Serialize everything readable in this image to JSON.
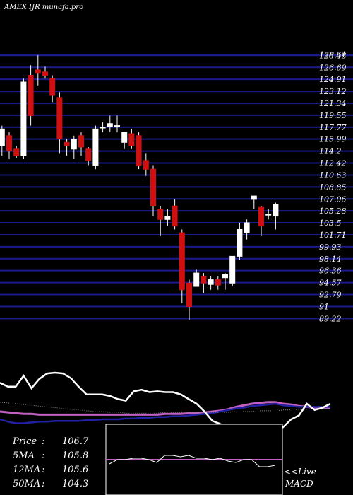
{
  "chart_data": {
    "type": "candlestick",
    "title": "AMEX  IJR munafa.pro",
    "y_ticks": [
      128.61,
      128.48,
      126.69,
      124.91,
      123.12,
      121.34,
      119.55,
      117.77,
      115.99,
      114.2,
      112.42,
      110.63,
      108.85,
      107.06,
      105.28,
      103.5,
      101.71,
      99.93,
      98.14,
      96.36,
      94.57,
      92.79,
      91,
      89.22
    ],
    "y_tick_labels": [
      "128.61",
      "128.48",
      "126.69",
      "124.91",
      "123.12",
      "121.34",
      "119.55",
      "117.77",
      "115.99",
      "114.2",
      "112.42",
      "110.63",
      "108.85",
      "107.06",
      "105.28",
      "103.5",
      "101.71",
      "99.93",
      "98.14",
      "96.36",
      "94.57",
      "92.79",
      "91",
      "89.22"
    ],
    "ylim": [
      88.2,
      130.2
    ],
    "grid": true,
    "candles": [
      {
        "o": 115.0,
        "h": 118.0,
        "l": 113.5,
        "c": 117.5
      },
      {
        "o": 116.5,
        "h": 117.0,
        "l": 113.0,
        "c": 114.2
      },
      {
        "o": 114.5,
        "h": 115.0,
        "l": 113.2,
        "c": 113.5
      },
      {
        "o": 113.5,
        "h": 125.0,
        "l": 113.0,
        "c": 124.5
      },
      {
        "o": 125.5,
        "h": 127.0,
        "l": 118.0,
        "c": 119.5
      },
      {
        "o": 126.3,
        "h": 128.5,
        "l": 124.0,
        "c": 125.9
      },
      {
        "o": 126.0,
        "h": 126.8,
        "l": 125.0,
        "c": 125.5
      },
      {
        "o": 125.0,
        "h": 125.5,
        "l": 121.5,
        "c": 122.5
      },
      {
        "o": 122.2,
        "h": 123.0,
        "l": 113.8,
        "c": 116.0
      },
      {
        "o": 115.5,
        "h": 116.0,
        "l": 113.5,
        "c": 115.0
      },
      {
        "o": 114.5,
        "h": 116.5,
        "l": 113.0,
        "c": 116.0
      },
      {
        "o": 116.5,
        "h": 117.0,
        "l": 113.5,
        "c": 114.8
      },
      {
        "o": 114.5,
        "h": 114.8,
        "l": 112.0,
        "c": 112.8
      },
      {
        "o": 112.0,
        "h": 118.0,
        "l": 111.5,
        "c": 117.5
      },
      {
        "o": 117.8,
        "h": 118.5,
        "l": 117.0,
        "c": 117.8
      },
      {
        "o": 117.8,
        "h": 119.5,
        "l": 117.0,
        "c": 118.3
      },
      {
        "o": 118.0,
        "h": 119.5,
        "l": 117.0,
        "c": 118.0
      },
      {
        "o": 115.5,
        "h": 117.0,
        "l": 114.5,
        "c": 117.0
      },
      {
        "o": 116.8,
        "h": 117.5,
        "l": 114.5,
        "c": 115.0
      },
      {
        "o": 116.5,
        "h": 117.0,
        "l": 111.5,
        "c": 112.0
      },
      {
        "o": 112.8,
        "h": 113.8,
        "l": 110.5,
        "c": 111.5
      },
      {
        "o": 111.5,
        "h": 112.0,
        "l": 104.5,
        "c": 106.0
      },
      {
        "o": 105.5,
        "h": 106.0,
        "l": 101.5,
        "c": 104.0
      },
      {
        "o": 104.0,
        "h": 105.5,
        "l": 103.0,
        "c": 104.5
      },
      {
        "o": 106.0,
        "h": 107.0,
        "l": 102.5,
        "c": 103.0
      },
      {
        "o": 102.0,
        "h": 102.5,
        "l": 91.5,
        "c": 93.5
      },
      {
        "o": 94.5,
        "h": 95.0,
        "l": 89.0,
        "c": 91.0
      },
      {
        "o": 94.0,
        "h": 96.5,
        "l": 94.0,
        "c": 96.0
      },
      {
        "o": 95.5,
        "h": 96.0,
        "l": 93.0,
        "c": 94.5
      },
      {
        "o": 94.3,
        "h": 95.5,
        "l": 93.5,
        "c": 95.0
      },
      {
        "o": 95.0,
        "h": 95.5,
        "l": 93.5,
        "c": 94.2
      },
      {
        "o": 95.3,
        "h": 96.0,
        "l": 93.5,
        "c": 95.8
      },
      {
        "o": 94.5,
        "h": 98.5,
        "l": 94.0,
        "c": 98.5
      },
      {
        "o": 98.5,
        "h": 103.5,
        "l": 98.0,
        "c": 102.5
      },
      {
        "o": 102.0,
        "h": 104.0,
        "l": 101.0,
        "c": 103.5
      },
      {
        "o": 107.0,
        "h": 107.5,
        "l": 105.5,
        "c": 107.5
      },
      {
        "o": 105.8,
        "h": 106.0,
        "l": 101.5,
        "c": 103.0
      },
      {
        "o": 104.8,
        "h": 105.5,
        "l": 104.0,
        "c": 104.8
      },
      {
        "o": 104.5,
        "h": 106.5,
        "l": 102.5,
        "c": 106.3
      }
    ],
    "colors": {
      "up": "#ffffff",
      "down": "#d01010",
      "grid": "#1a1a8a",
      "price_line": "#ffffff",
      "ma5": "#2020a0",
      "ma12": "#c060c0",
      "ma50": "#ffffff"
    },
    "indicator": {
      "price_line": [
        0.67,
        0.62,
        0.62,
        0.76,
        0.6,
        0.72,
        0.79,
        0.8,
        0.79,
        0.73,
        0.62,
        0.52,
        0.52,
        0.52,
        0.5,
        0.46,
        0.44,
        0.56,
        0.58,
        0.55,
        0.56,
        0.55,
        0.55,
        0.52,
        0.46,
        0.4,
        0.3,
        0.18,
        0.14,
        0.04,
        -0.05,
        0.0,
        0.02,
        0.04,
        0.08,
        0.05,
        0.1,
        0.2,
        0.25,
        0.4,
        0.32,
        0.35,
        0.4
      ],
      "ma_slow": [
        0.42,
        0.41,
        0.4,
        0.39,
        0.38,
        0.37,
        0.36,
        0.35,
        0.34,
        0.33,
        0.32,
        0.31,
        0.3,
        0.3,
        0.29,
        0.29,
        0.28,
        0.28,
        0.28,
        0.28,
        0.28,
        0.29,
        0.29,
        0.29,
        0.29,
        0.29,
        0.29,
        0.29,
        0.29,
        0.29,
        0.3,
        0.3,
        0.3,
        0.31,
        0.31,
        0.31,
        0.32,
        0.32,
        0.33,
        0.33,
        0.33,
        0.34,
        0.34
      ],
      "ma_fast": [
        0.2,
        0.17,
        0.15,
        0.15,
        0.16,
        0.17,
        0.17,
        0.18,
        0.18,
        0.18,
        0.18,
        0.19,
        0.19,
        0.2,
        0.2,
        0.2,
        0.21,
        0.21,
        0.22,
        0.22,
        0.23,
        0.23,
        0.24,
        0.24,
        0.25,
        0.26,
        0.27,
        0.28,
        0.3,
        0.32,
        0.34,
        0.35,
        0.37,
        0.38,
        0.39,
        0.4,
        0.38,
        0.37,
        0.36,
        0.36,
        0.36,
        0.36,
        0.36
      ],
      "ma_signal": [
        0.3,
        0.29,
        0.28,
        0.27,
        0.27,
        0.26,
        0.26,
        0.26,
        0.26,
        0.26,
        0.26,
        0.26,
        0.26,
        0.26,
        0.26,
        0.26,
        0.26,
        0.26,
        0.26,
        0.26,
        0.26,
        0.27,
        0.27,
        0.27,
        0.28,
        0.28,
        0.29,
        0.3,
        0.31,
        0.33,
        0.36,
        0.38,
        0.4,
        0.41,
        0.42,
        0.42,
        0.4,
        0.39,
        0.37,
        0.36,
        0.35,
        0.35,
        0.35
      ]
    },
    "macd_inset": {
      "label": "<<Live MACD",
      "line": [
        0.3,
        0.45,
        0.45,
        0.5,
        0.5,
        0.45,
        0.35,
        0.6,
        0.6,
        0.55,
        0.6,
        0.5,
        0.5,
        0.45,
        0.5,
        0.4,
        0.35,
        0.45,
        0.45,
        0.2,
        0.2,
        0.25
      ]
    },
    "info_lines": [
      {
        "label": "Price",
        "value": "106.7"
      },
      {
        "label": "5MA",
        "value": "105.8"
      },
      {
        "label": "12MA",
        "value": "105.6"
      },
      {
        "label": "50MA",
        "value": "104.3"
      }
    ]
  }
}
